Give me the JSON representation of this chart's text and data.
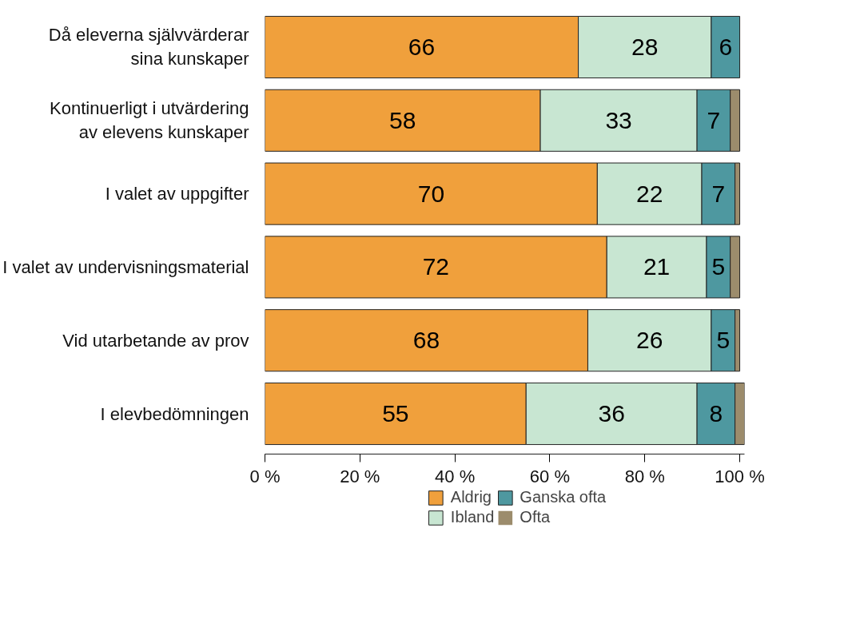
{
  "chart_data": {
    "type": "bar",
    "orientation": "horizontal",
    "stacked": true,
    "categories": [
      "Då eleverna självvärderar\nsina kunskaper",
      "Kontinuerligt i utvärdering\nav elevens kunskaper",
      "I valet av uppgifter",
      "I valet av undervisningsmaterial",
      "Vid utarbetande av prov",
      "I elevbedömningen"
    ],
    "series": [
      {
        "name": "Aldrig",
        "color": "#f0a03c",
        "values": [
          66,
          58,
          70,
          72,
          68,
          55
        ],
        "value_labels": [
          "66",
          "58",
          "70",
          "72",
          "68",
          "55"
        ]
      },
      {
        "name": "Ibland",
        "color": "#c8e6d2",
        "values": [
          28,
          33,
          22,
          21,
          26,
          36
        ],
        "value_labels": [
          "28",
          "33",
          "22",
          "21",
          "26",
          "36"
        ]
      },
      {
        "name": "Ganska ofta",
        "color": "#4e98a0",
        "values": [
          6,
          7,
          7,
          5,
          5,
          8
        ],
        "value_labels": [
          "6",
          "7",
          "7",
          "5",
          "5",
          "8"
        ]
      },
      {
        "name": "Ofta",
        "color": "#9c8c6c",
        "values": [
          0,
          2,
          1,
          2,
          1,
          2
        ]
      }
    ],
    "xlim": [
      0,
      101
    ],
    "xticks": [
      {
        "value": 0,
        "label": "0 %"
      },
      {
        "value": 20,
        "label": "20 %"
      },
      {
        "value": 40,
        "label": "40 %"
      },
      {
        "value": 60,
        "label": "60 %"
      },
      {
        "value": 80,
        "label": "80 %"
      },
      {
        "value": 100,
        "label": "100 %"
      }
    ],
    "grid": false,
    "legend": "bottom"
  }
}
